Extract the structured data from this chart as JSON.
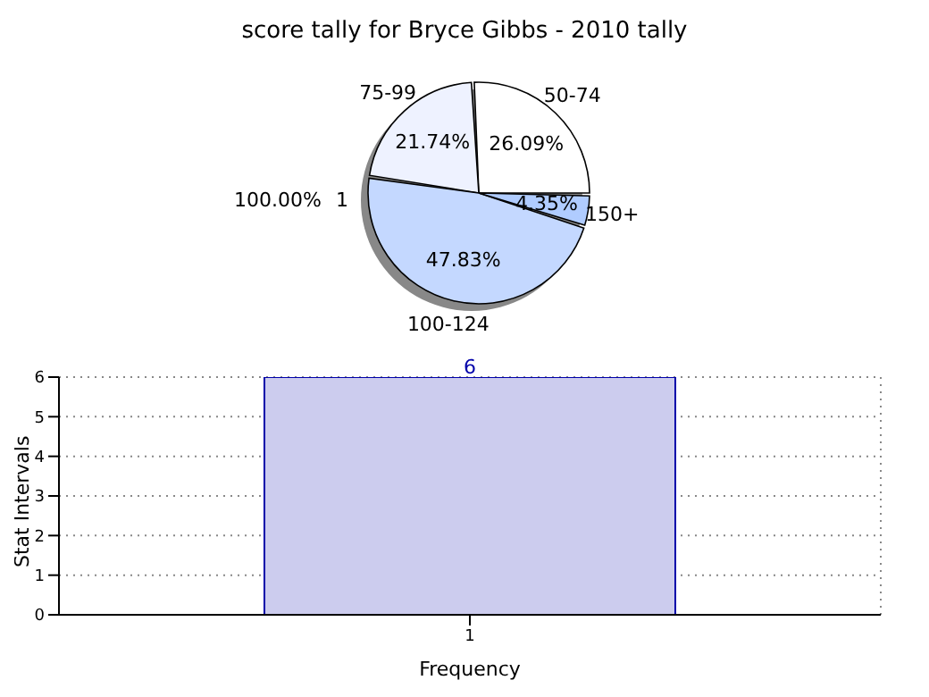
{
  "chart_data": [
    {
      "type": "pie",
      "title": "score tally for Bryce Gibbs - 2010 tally",
      "categories": [
        "50-74",
        "75-99",
        "100-124",
        "150+"
      ],
      "values": [
        26.09,
        21.74,
        47.83,
        4.35
      ],
      "value_labels": [
        "26.09%",
        "21.74%",
        "47.83%",
        "4.35%"
      ],
      "colors": [
        "#ffffff",
        "#eef2ff",
        "#c4d8ff",
        "#b0ccff"
      ]
    },
    {
      "type": "pie",
      "categories": [
        "1"
      ],
      "values": [
        100
      ],
      "value_labels": [
        "100.00%"
      ],
      "colors": [
        "#888888"
      ]
    },
    {
      "type": "bar",
      "categories": [
        "1"
      ],
      "values": [
        6
      ],
      "color": "#ccccee",
      "data_labels": true,
      "xlabel": "Frequency",
      "ylabel": "Stat Intervals",
      "ylim": [
        0,
        6
      ],
      "yticks": [
        0,
        1,
        2,
        3,
        4,
        5,
        6
      ],
      "grid": true
    }
  ]
}
